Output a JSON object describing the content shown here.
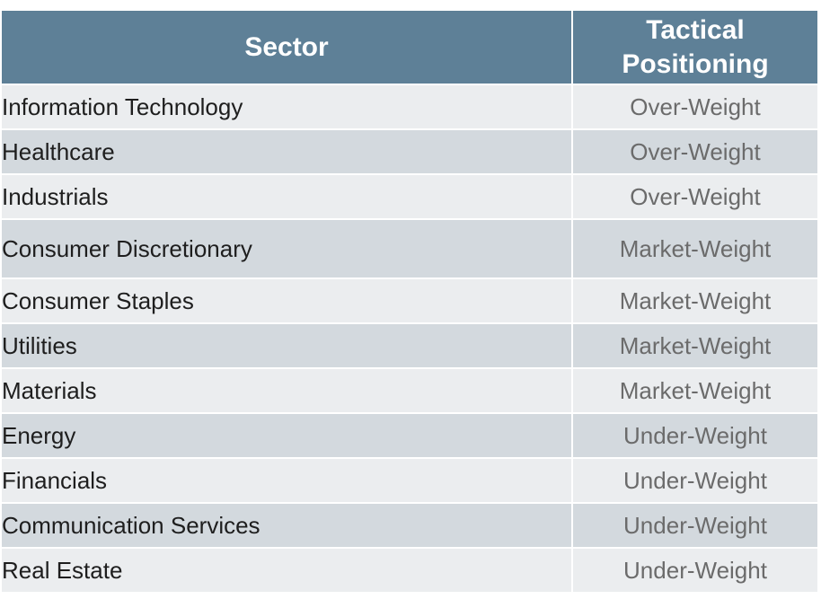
{
  "table": {
    "headers": {
      "sector": "Sector",
      "positioning": "Tactical Positioning"
    },
    "rows": [
      {
        "sector": "Information Technology",
        "positioning": "Over-Weight"
      },
      {
        "sector": "Healthcare",
        "positioning": "Over-Weight"
      },
      {
        "sector": "Industrials",
        "positioning": "Over-Weight"
      },
      {
        "sector": "Consumer Discretionary",
        "positioning": "Market-Weight"
      },
      {
        "sector": "Consumer Staples",
        "positioning": "Market-Weight"
      },
      {
        "sector": "Utilities",
        "positioning": "Market-Weight"
      },
      {
        "sector": "Materials",
        "positioning": "Market-Weight"
      },
      {
        "sector": "Energy",
        "positioning": "Under-Weight"
      },
      {
        "sector": "Financials",
        "positioning": "Under-Weight"
      },
      {
        "sector": "Communication Services",
        "positioning": "Under-Weight"
      },
      {
        "sector": "Real Estate",
        "positioning": "Under-Weight"
      }
    ]
  },
  "colors": {
    "header_bg": "#5e8097",
    "row_light": "#ebedef",
    "row_dark": "#d3d9de",
    "sector_text": "#1e1e1e",
    "position_text": "#6b6b6b"
  }
}
